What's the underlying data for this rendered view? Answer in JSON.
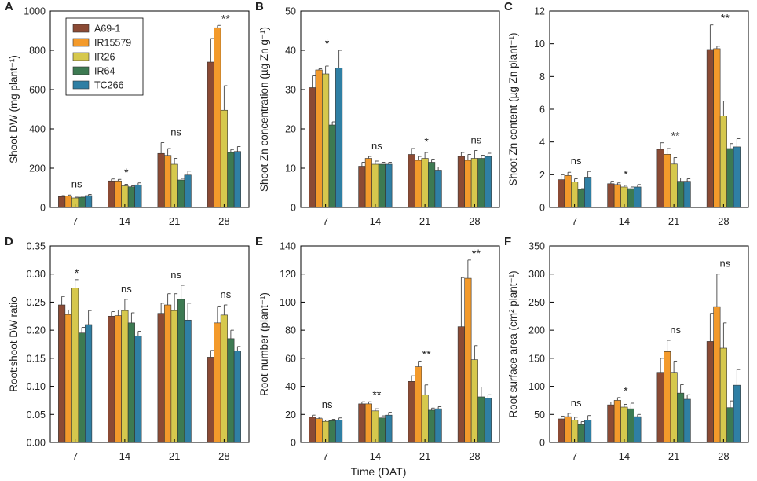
{
  "figure": {
    "shared_xlabel": "Time (DAT)",
    "legend_labels": [
      "A69-1",
      "IR15579",
      "IR26",
      "IR64",
      "TC266"
    ]
  },
  "colors": {
    "series": [
      "#8b4a34",
      "#f39a2b",
      "#d6c84d",
      "#3d7a52",
      "#2f7fa4"
    ]
  },
  "chart_data": [
    {
      "id": "A",
      "panel_label": "A",
      "type": "bar",
      "title": "",
      "xlabel": "",
      "ylabel": "Shoot DW (mg plant⁻¹)",
      "categories": [
        "7",
        "14",
        "21",
        "28"
      ],
      "ylim": [
        0,
        1000
      ],
      "yticks": [
        0,
        200,
        400,
        600,
        800,
        1000
      ],
      "tick_labels": [
        "0",
        "200",
        "400",
        "600",
        "800",
        "1000"
      ],
      "series": [
        {
          "name": "A69-1",
          "values": [
            55,
            135,
            275,
            740
          ],
          "errors": [
            5,
            10,
            55,
            120
          ]
        },
        {
          "name": "IR15579",
          "values": [
            58,
            135,
            265,
            915
          ],
          "errors": [
            5,
            8,
            35,
            12
          ]
        },
        {
          "name": "IR26",
          "values": [
            48,
            110,
            220,
            495
          ],
          "errors": [
            4,
            8,
            30,
            125
          ]
        },
        {
          "name": "IR64",
          "values": [
            52,
            105,
            140,
            280
          ],
          "errors": [
            5,
            5,
            8,
            15
          ]
        },
        {
          "name": "TC266",
          "values": [
            60,
            115,
            165,
            285
          ],
          "errors": [
            6,
            10,
            20,
            25
          ]
        }
      ],
      "significance": [
        "ns",
        "*",
        "ns",
        "**"
      ],
      "legend": "top-left"
    },
    {
      "id": "B",
      "panel_label": "B",
      "type": "bar",
      "xlabel": "",
      "ylabel": "Shoot Zn concentration (µg Zn g⁻¹)",
      "categories": [
        "7",
        "14",
        "21",
        "28"
      ],
      "ylim": [
        0,
        50
      ],
      "yticks": [
        0,
        10,
        20,
        30,
        40,
        50
      ],
      "tick_labels": [
        "0",
        "10",
        "20",
        "30",
        "40",
        "50"
      ],
      "series": [
        {
          "name": "A69-1",
          "values": [
            30.5,
            10.5,
            13.5,
            13.0
          ],
          "errors": [
            3.0,
            1.0,
            1.5,
            1.0
          ]
        },
        {
          "name": "IR15579",
          "values": [
            35.0,
            12.5,
            12.0,
            12.0
          ],
          "errors": [
            0.3,
            0.5,
            1.0,
            1.5
          ]
        },
        {
          "name": "IR26",
          "values": [
            34.0,
            11.0,
            12.5,
            12.5
          ],
          "errors": [
            2.0,
            0.8,
            1.5,
            2.0
          ]
        },
        {
          "name": "IR64",
          "values": [
            21.0,
            11.0,
            11.5,
            12.5
          ],
          "errors": [
            0.8,
            0.5,
            0.8,
            0.8
          ]
        },
        {
          "name": "TC266",
          "values": [
            35.5,
            11.0,
            9.5,
            13.0
          ],
          "errors": [
            4.5,
            0.5,
            0.8,
            0.8
          ]
        }
      ],
      "significance": [
        "*",
        "ns",
        "*",
        "ns"
      ]
    },
    {
      "id": "C",
      "panel_label": "C",
      "type": "bar",
      "xlabel": "",
      "ylabel": "Shoot Zn content (µg Zn plant⁻¹)",
      "categories": [
        "7",
        "14",
        "21",
        "28"
      ],
      "ylim": [
        0,
        12
      ],
      "yticks": [
        0,
        2,
        4,
        6,
        8,
        10,
        12
      ],
      "tick_labels": [
        "0",
        "2",
        "4",
        "6",
        "8",
        "10",
        "12"
      ],
      "series": [
        {
          "name": "A69-1",
          "values": [
            1.7,
            1.45,
            3.55,
            9.65
          ],
          "errors": [
            0.3,
            0.15,
            0.4,
            1.5
          ]
        },
        {
          "name": "IR15579",
          "values": [
            1.95,
            1.4,
            3.25,
            9.7
          ],
          "errors": [
            0.2,
            0.1,
            0.35,
            0.15
          ]
        },
        {
          "name": "IR26",
          "values": [
            1.55,
            1.25,
            2.65,
            5.6
          ],
          "errors": [
            0.2,
            0.1,
            0.4,
            0.9
          ]
        },
        {
          "name": "IR64",
          "values": [
            1.1,
            1.15,
            1.6,
            3.6
          ],
          "errors": [
            0.05,
            0.1,
            0.2,
            0.3
          ]
        },
        {
          "name": "TC266",
          "values": [
            1.85,
            1.25,
            1.6,
            3.7
          ],
          "errors": [
            0.35,
            0.15,
            0.15,
            0.5
          ]
        }
      ],
      "significance": [
        "ns",
        "*",
        "**",
        "**"
      ]
    },
    {
      "id": "D",
      "panel_label": "D",
      "type": "bar",
      "xlabel": "",
      "ylabel": "Root:shoot DW ratio",
      "categories": [
        "7",
        "14",
        "21",
        "28"
      ],
      "ylim": [
        0,
        0.35
      ],
      "yticks": [
        0,
        0.05,
        0.1,
        0.15,
        0.2,
        0.25,
        0.3,
        0.35
      ],
      "tick_labels": [
        "0.00",
        "0.05",
        "0.10",
        "0.15",
        "0.20",
        "0.25",
        "0.30",
        "0.35"
      ],
      "series": [
        {
          "name": "A69-1",
          "values": [
            0.245,
            0.225,
            0.23,
            0.152
          ],
          "errors": [
            0.015,
            0.008,
            0.018,
            0.012
          ]
        },
        {
          "name": "IR15579",
          "values": [
            0.228,
            0.226,
            0.245,
            0.213
          ],
          "errors": [
            0.008,
            0.01,
            0.02,
            0.03
          ]
        },
        {
          "name": "IR26",
          "values": [
            0.275,
            0.235,
            0.235,
            0.227
          ],
          "errors": [
            0.015,
            0.02,
            0.03,
            0.018
          ]
        },
        {
          "name": "IR64",
          "values": [
            0.195,
            0.213,
            0.255,
            0.185
          ],
          "errors": [
            0.01,
            0.018,
            0.025,
            0.015
          ]
        },
        {
          "name": "TC266",
          "values": [
            0.21,
            0.19,
            0.218,
            0.163
          ],
          "errors": [
            0.025,
            0.008,
            0.03,
            0.008
          ]
        }
      ],
      "significance": [
        "*",
        "ns",
        "ns",
        "ns"
      ]
    },
    {
      "id": "E",
      "panel_label": "E",
      "type": "bar",
      "xlabel": "",
      "ylabel": "Root number (plant⁻¹)",
      "categories": [
        "7",
        "14",
        "21",
        "28"
      ],
      "ylim": [
        0,
        140
      ],
      "yticks": [
        0,
        20,
        40,
        60,
        80,
        100,
        120,
        140
      ],
      "tick_labels": [
        "0",
        "20",
        "40",
        "60",
        "80",
        "100",
        "120",
        "140"
      ],
      "series": [
        {
          "name": "A69-1",
          "values": [
            18,
            27.5,
            43.5,
            82.5
          ],
          "errors": [
            1.5,
            1.5,
            4.0,
            35.0
          ]
        },
        {
          "name": "IR15579",
          "values": [
            17,
            27.5,
            54,
            117
          ],
          "errors": [
            1.0,
            1.5,
            4.0,
            13.0
          ]
        },
        {
          "name": "IR26",
          "values": [
            15,
            22.5,
            34,
            59
          ],
          "errors": [
            1.0,
            1.5,
            7.0,
            10.0
          ]
        },
        {
          "name": "IR64",
          "values": [
            15.5,
            17.5,
            23,
            32.5
          ],
          "errors": [
            1.0,
            1.5,
            1.5,
            7.0
          ]
        },
        {
          "name": "TC266",
          "values": [
            16,
            19.5,
            24,
            31.5
          ],
          "errors": [
            1.5,
            2.0,
            1.5,
            2.5
          ]
        }
      ],
      "significance": [
        "ns",
        "**",
        "**",
        "**"
      ]
    },
    {
      "id": "F",
      "panel_label": "F",
      "type": "bar",
      "xlabel": "",
      "ylabel": "Root surface area (cm² plant⁻¹)",
      "categories": [
        "7",
        "14",
        "21",
        "28"
      ],
      "ylim": [
        0,
        350
      ],
      "yticks": [
        0,
        50,
        100,
        150,
        200,
        250,
        300,
        350
      ],
      "tick_labels": [
        "0",
        "50",
        "100",
        "150",
        "200",
        "250",
        "300",
        "350"
      ],
      "series": [
        {
          "name": "A69-1",
          "values": [
            42,
            67,
            125,
            180
          ],
          "errors": [
            5,
            5,
            25,
            50
          ]
        },
        {
          "name": "IR15579",
          "values": [
            46,
            75,
            162,
            242
          ],
          "errors": [
            6,
            5,
            20,
            58
          ]
        },
        {
          "name": "IR26",
          "values": [
            40,
            63,
            125,
            168
          ],
          "errors": [
            5,
            5,
            20,
            45
          ]
        },
        {
          "name": "IR64",
          "values": [
            32,
            60,
            88,
            62
          ],
          "errors": [
            5,
            10,
            15,
            12
          ]
        },
        {
          "name": "TC266",
          "values": [
            40,
            46,
            77,
            102
          ],
          "errors": [
            8,
            4,
            8,
            28
          ]
        }
      ],
      "significance": [
        "ns",
        "*",
        "ns",
        "ns"
      ]
    }
  ]
}
